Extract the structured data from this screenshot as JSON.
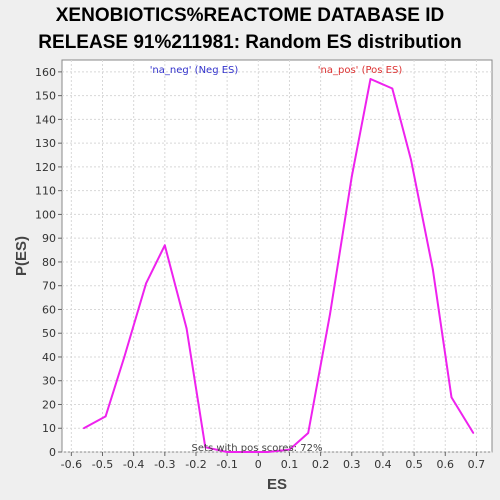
{
  "chart_data": {
    "type": "line",
    "title_lines": [
      "XENOBIOTICS%REACTOME DATABASE ID",
      "RELEASE 91%211981: Random ES distribution"
    ],
    "xlabel": "ES",
    "ylabel": "P(ES)",
    "xlim": [
      -0.63,
      0.75
    ],
    "ylim": [
      0,
      165
    ],
    "x_ticks": [
      -0.6,
      -0.5,
      -0.4,
      -0.3,
      -0.2,
      -0.1,
      0,
      0.1,
      0.2,
      0.3,
      0.4,
      0.5,
      0.6,
      0.7
    ],
    "x_tick_labels": [
      "-0.6",
      "-0.5",
      "-0.4",
      "-0.3",
      "-0.2",
      "-0.1",
      "0",
      "0.1",
      "0.2",
      "0.3",
      "0.4",
      "0.5",
      "0.6",
      "0.7"
    ],
    "y_ticks": [
      0,
      10,
      20,
      30,
      40,
      50,
      60,
      70,
      80,
      90,
      100,
      110,
      120,
      130,
      140,
      150,
      160
    ],
    "y_tick_labels": [
      "0",
      "10",
      "20",
      "30",
      "40",
      "50",
      "60",
      "70",
      "80",
      "90",
      "100",
      "110",
      "120",
      "130",
      "140",
      "150",
      "160"
    ],
    "grid": true,
    "line_color": "#ee22ee",
    "series": [
      {
        "x": [
          -0.56,
          -0.49,
          -0.43,
          -0.36,
          -0.3,
          -0.23,
          -0.17,
          -0.1,
          -0.04,
          0.03,
          0.1,
          0.16,
          0.23,
          0.3,
          0.36,
          0.43,
          0.49,
          0.56,
          0.62,
          0.69
        ],
        "values": [
          10,
          15,
          40,
          71,
          87,
          52,
          2,
          0,
          0,
          0,
          1,
          8,
          58,
          116,
          157,
          153,
          123,
          77,
          23,
          8
        ]
      }
    ],
    "annotations": {
      "neg": {
        "text": "'na_neg' (Neg ES)",
        "color": "#3333cc"
      },
      "pos": {
        "text": "'na_pos' (Pos ES)",
        "color": "#dd3333"
      },
      "footnote": "Sets with pos scores: 72%"
    }
  }
}
